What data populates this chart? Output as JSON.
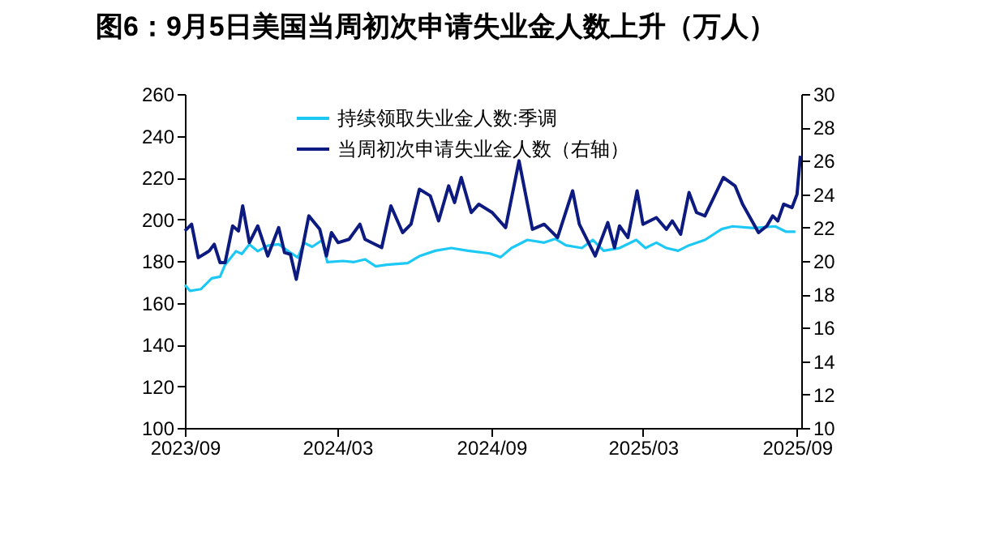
{
  "chart_data": {
    "type": "line",
    "title": "图6：9月5日美国当周初次申请失业金人数上升（万人）",
    "xlim": [
      "2023-09-01",
      "2025-09-06"
    ],
    "xticks": [
      {
        "value": "2023-09-01",
        "label": "2023/09"
      },
      {
        "value": "2024-03-01",
        "label": "2024/03"
      },
      {
        "value": "2024-09-01",
        "label": "2024/09"
      },
      {
        "value": "2025-03-01",
        "label": "2025/03"
      },
      {
        "value": "2025-09-01",
        "label": "2025/09"
      }
    ],
    "ylim": [
      100,
      260
    ],
    "yticks": [
      100,
      120,
      140,
      160,
      180,
      200,
      220,
      240,
      260
    ],
    "y2lim": [
      10,
      30
    ],
    "y2ticks": [
      10,
      12,
      14,
      16,
      18,
      20,
      22,
      24,
      26,
      28,
      30
    ],
    "legend": "top left",
    "grid": false,
    "line_style": "solid",
    "marker": "none",
    "series": [
      {
        "name": "持续领取失业金人数:季调",
        "color": "#1ec8f5",
        "x": [
          "2023-09-01",
          "2023-09-07",
          "2023-09-20",
          "2023-10-03",
          "2023-10-13",
          "2023-10-19",
          "2023-11-01",
          "2023-11-08",
          "2023-11-17",
          "2023-11-27",
          "2023-12-09",
          "2023-12-22",
          "2024-01-05",
          "2024-01-14",
          "2024-01-21",
          "2024-01-31",
          "2024-02-12",
          "2024-02-18",
          "2024-03-08",
          "2024-03-21",
          "2024-04-03",
          "2024-04-16",
          "2024-04-29",
          "2024-05-24",
          "2024-06-07",
          "2024-06-26",
          "2024-07-15",
          "2024-08-04",
          "2024-08-30",
          "2024-09-12",
          "2024-09-25",
          "2024-10-14",
          "2024-11-03",
          "2024-11-16",
          "2024-11-29",
          "2024-12-18",
          "2024-12-31",
          "2025-01-13",
          "2025-02-01",
          "2025-02-21",
          "2025-03-04",
          "2025-03-17",
          "2025-03-29",
          "2025-04-12",
          "2025-04-25",
          "2025-05-14",
          "2025-06-03",
          "2025-06-16",
          "2025-07-11",
          "2025-08-06",
          "2025-08-19",
          "2025-08-30"
        ],
        "values": [
          168.5,
          165.7,
          166.5,
          171.7,
          172.5,
          178.2,
          184.7,
          183.4,
          188,
          184.7,
          187.3,
          188,
          184,
          181.6,
          188.8,
          186.8,
          190,
          179.5,
          180,
          179.5,
          180.8,
          177.4,
          178.2,
          179,
          182.3,
          184.9,
          186.2,
          184.9,
          183.6,
          181.8,
          186.2,
          190.1,
          188.8,
          190.6,
          187.5,
          186.2,
          190.1,
          184.9,
          186.2,
          190.1,
          186.2,
          188.8,
          186.2,
          184.9,
          187.5,
          190.1,
          195.3,
          196.6,
          195.8,
          196.6,
          194,
          194
        ]
      },
      {
        "name": "当周初次申请失业金人数（右轴）",
        "color": "#0d1a80",
        "axis": "y2",
        "x": [
          "2023-09-01",
          "2023-09-09",
          "2023-09-17",
          "2023-09-30",
          "2023-10-06",
          "2023-10-13",
          "2023-10-19",
          "2023-10-28",
          "2023-11-04",
          "2023-11-09",
          "2023-11-17",
          "2023-11-27",
          "2023-12-09",
          "2023-12-22",
          "2023-12-29",
          "2024-01-05",
          "2024-01-12",
          "2024-01-27",
          "2024-02-09",
          "2024-02-17",
          "2024-02-23",
          "2024-03-02",
          "2024-03-15",
          "2024-03-28",
          "2024-04-03",
          "2024-04-23",
          "2024-05-04",
          "2024-05-18",
          "2024-05-28",
          "2024-06-07",
          "2024-06-20",
          "2024-06-30",
          "2024-07-12",
          "2024-07-19",
          "2024-07-27",
          "2024-08-08",
          "2024-08-17",
          "2024-09-02",
          "2024-09-18",
          "2024-10-04",
          "2024-10-20",
          "2024-11-03",
          "2024-11-19",
          "2024-12-07",
          "2024-12-15",
          "2025-01-03",
          "2025-01-18",
          "2025-01-26",
          "2025-02-01",
          "2025-02-11",
          "2025-02-22",
          "2025-03-01",
          "2025-03-17",
          "2025-03-29",
          "2025-04-05",
          "2025-04-15",
          "2025-04-25",
          "2025-05-04",
          "2025-05-14",
          "2025-06-05",
          "2025-06-19",
          "2025-06-28",
          "2025-07-17",
          "2025-07-27",
          "2025-08-03",
          "2025-08-09",
          "2025-08-16",
          "2025-08-26",
          "2025-09-01",
          "2025-09-05"
        ],
        "values": [
          21.8,
          22.2,
          20.2,
          20.6,
          21.0,
          19.9,
          19.9,
          22.1,
          21.8,
          23.3,
          21.1,
          22.1,
          20.3,
          22.0,
          20.5,
          20.4,
          18.9,
          22.7,
          21.9,
          20.3,
          21.7,
          21.1,
          21.3,
          22.2,
          21.3,
          20.8,
          23.3,
          21.7,
          22.2,
          24.3,
          23.9,
          22.4,
          24.5,
          23.5,
          25.0,
          22.9,
          23.4,
          22.9,
          22.0,
          26.0,
          21.9,
          22.2,
          21.4,
          24.2,
          22.2,
          20.3,
          22.3,
          20.8,
          22.1,
          21.4,
          24.2,
          22.2,
          22.6,
          21.9,
          22.4,
          21.6,
          24.1,
          22.9,
          22.7,
          25.0,
          24.5,
          23.4,
          21.7,
          22.1,
          22.7,
          22.4,
          23.4,
          23.2,
          24.0,
          26.3
        ]
      }
    ]
  }
}
